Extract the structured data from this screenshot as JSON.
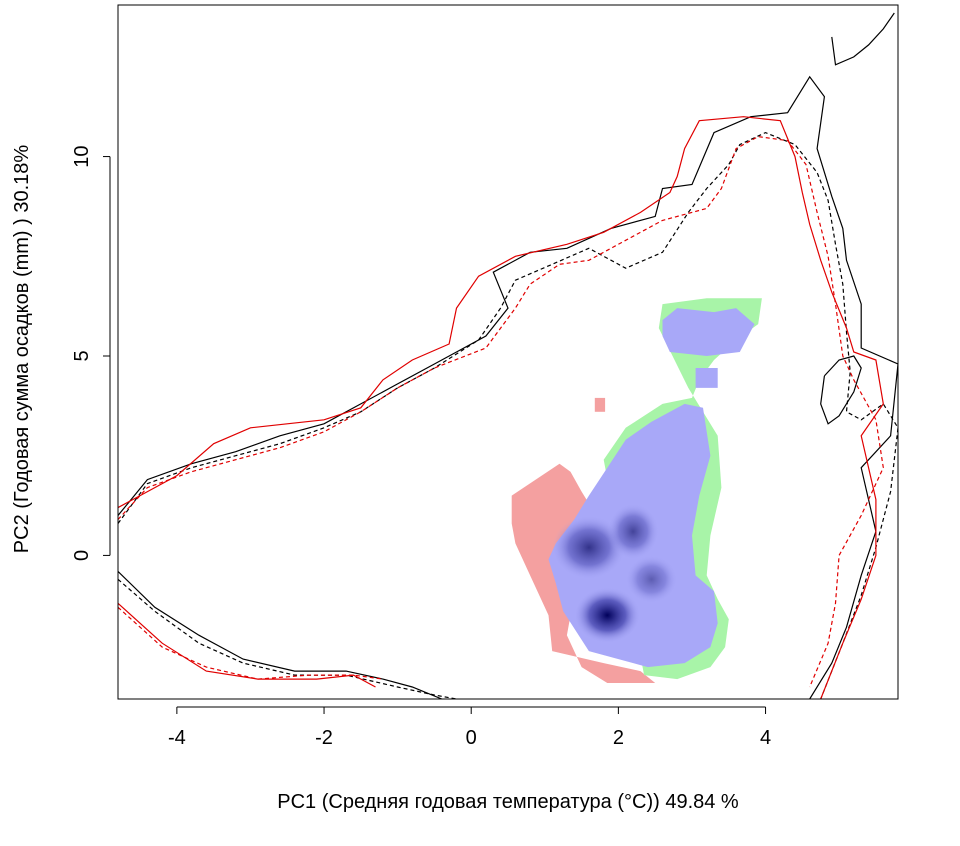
{
  "chart_data": {
    "type": "heatmap",
    "title": "",
    "xlabel": "PC1 (Средняя годовая температура (°С)) 49.84 %",
    "ylabel": "PC2 (Годовая сумма осадков  (mm) ) 30.18%",
    "xlim": [
      -4.8,
      5.8
    ],
    "ylim": [
      -3.6,
      13.8
    ],
    "xticks": [
      -4,
      -2,
      0,
      2,
      4
    ],
    "xtick_labels": [
      "-4",
      "-2",
      "0",
      "2",
      "4"
    ],
    "yticks": [
      0,
      5,
      10
    ],
    "ytick_labels": [
      "0",
      "5",
      "10"
    ],
    "grid": false,
    "legend": "none",
    "colors": {
      "only_species_1": "#f4a0a0",
      "only_species_2": "#a8f4a8",
      "overlap_low": "#a8a8f8",
      "overlap_high": "#00005a",
      "environment_contour_1": "#000000",
      "environment_contour_2": "#e00000"
    },
    "regions": [
      {
        "name": "red-zone",
        "fill": "#f4a0a0",
        "points": [
          [
            0.55,
            1.5
          ],
          [
            1.2,
            2.3
          ],
          [
            1.35,
            2.1
          ],
          [
            1.5,
            1.6
          ],
          [
            1.7,
            1.0
          ],
          [
            1.75,
            0.5
          ],
          [
            1.7,
            0.0
          ],
          [
            1.4,
            -1.0
          ],
          [
            1.3,
            -2.0
          ],
          [
            1.5,
            -2.8
          ],
          [
            1.85,
            -3.2
          ],
          [
            2.5,
            -3.2
          ],
          [
            2.3,
            -2.9
          ],
          [
            1.8,
            -2.7
          ],
          [
            1.1,
            -2.4
          ],
          [
            1.05,
            -1.5
          ],
          [
            0.8,
            -0.5
          ],
          [
            0.6,
            0.3
          ],
          [
            0.55,
            0.8
          ]
        ]
      },
      {
        "name": "red-blob-small",
        "fill": "#f4a0a0",
        "points": [
          [
            1.68,
            3.95
          ],
          [
            1.82,
            3.95
          ],
          [
            1.82,
            3.6
          ],
          [
            1.68,
            3.6
          ]
        ]
      },
      {
        "name": "green-zone",
        "fill": "#a8f4a8",
        "points": [
          [
            1.8,
            2.4
          ],
          [
            2.1,
            3.2
          ],
          [
            2.6,
            3.8
          ],
          [
            3.0,
            3.95
          ],
          [
            3.1,
            4.4
          ],
          [
            3.3,
            4.9
          ],
          [
            3.6,
            5.4
          ],
          [
            3.9,
            5.8
          ],
          [
            3.95,
            6.45
          ],
          [
            3.2,
            6.45
          ],
          [
            2.6,
            6.3
          ],
          [
            2.55,
            5.7
          ],
          [
            2.95,
            4.2
          ],
          [
            3.35,
            3.0
          ],
          [
            3.4,
            1.7
          ],
          [
            3.25,
            0.5
          ],
          [
            3.2,
            -0.5
          ],
          [
            3.35,
            -1.1
          ],
          [
            3.5,
            -1.6
          ],
          [
            3.45,
            -2.3
          ],
          [
            3.25,
            -2.8
          ],
          [
            2.8,
            -3.1
          ],
          [
            2.35,
            -3.0
          ]
        ]
      },
      {
        "name": "blue-zone",
        "fill": "#a8a8f8",
        "points": [
          [
            1.85,
            2.2
          ],
          [
            2.1,
            2.9
          ],
          [
            2.45,
            3.35
          ],
          [
            2.9,
            3.8
          ],
          [
            3.15,
            3.7
          ],
          [
            3.25,
            2.5
          ],
          [
            3.1,
            1.5
          ],
          [
            3.0,
            0.5
          ],
          [
            3.05,
            -0.5
          ],
          [
            3.3,
            -0.9
          ],
          [
            3.35,
            -1.7
          ],
          [
            3.25,
            -2.3
          ],
          [
            2.9,
            -2.7
          ],
          [
            2.4,
            -2.8
          ],
          [
            1.6,
            -2.4
          ],
          [
            1.25,
            -1.4
          ],
          [
            1.15,
            -0.7
          ],
          [
            1.05,
            -0.1
          ],
          [
            1.15,
            0.3
          ],
          [
            1.4,
            0.9
          ],
          [
            1.6,
            1.5
          ]
        ]
      },
      {
        "name": "blue-zone-upper",
        "fill": "#a8a8f8",
        "points": [
          [
            2.6,
            5.9
          ],
          [
            2.8,
            6.2
          ],
          [
            3.3,
            6.1
          ],
          [
            3.6,
            6.2
          ],
          [
            3.85,
            5.8
          ],
          [
            3.65,
            5.1
          ],
          [
            3.2,
            5.0
          ],
          [
            2.7,
            5.1
          ],
          [
            2.6,
            5.5
          ]
        ]
      },
      {
        "name": "blue-zone-link",
        "fill": "#a8a8f8",
        "points": [
          [
            3.05,
            4.2
          ],
          [
            3.35,
            4.2
          ],
          [
            3.35,
            4.7
          ],
          [
            3.05,
            4.7
          ]
        ]
      }
    ],
    "density_cores": [
      {
        "x": 1.85,
        "y": -1.5,
        "rx": 0.45,
        "ry": 0.7,
        "intensity": 1.0
      },
      {
        "x": 1.6,
        "y": 0.2,
        "rx": 0.5,
        "ry": 0.8,
        "intensity": 0.7
      },
      {
        "x": 2.2,
        "y": 0.6,
        "rx": 0.35,
        "ry": 0.7,
        "intensity": 0.6
      },
      {
        "x": 2.45,
        "y": -0.6,
        "rx": 0.35,
        "ry": 0.6,
        "intensity": 0.45
      }
    ],
    "contours": [
      {
        "name": "contour-black-solid",
        "color": "#000000",
        "dash": false,
        "points": [
          [
            -4.8,
            1.0
          ],
          [
            -4.4,
            1.9
          ],
          [
            -3.8,
            2.3
          ],
          [
            -3.2,
            2.6
          ],
          [
            -2.6,
            3.0
          ],
          [
            -2.0,
            3.3
          ],
          [
            -1.5,
            3.8
          ],
          [
            -1.0,
            4.3
          ],
          [
            -0.5,
            4.8
          ],
          [
            -0.2,
            5.1
          ],
          [
            0.2,
            5.5
          ],
          [
            0.5,
            6.2
          ],
          [
            0.3,
            7.1
          ],
          [
            0.8,
            7.6
          ],
          [
            1.3,
            7.7
          ],
          [
            1.9,
            8.2
          ],
          [
            2.5,
            8.5
          ],
          [
            2.6,
            9.2
          ],
          [
            3.0,
            9.3
          ],
          [
            3.3,
            10.6
          ],
          [
            3.8,
            11.0
          ],
          [
            4.3,
            11.1
          ],
          [
            4.6,
            12.0
          ],
          [
            4.8,
            11.5
          ],
          [
            4.7,
            10.2
          ],
          [
            4.9,
            9.0
          ],
          [
            5.05,
            8.2
          ],
          [
            5.1,
            7.4
          ],
          [
            5.3,
            6.3
          ],
          [
            5.3,
            5.2
          ],
          [
            5.8,
            4.8
          ],
          [
            5.7,
            3.0
          ],
          [
            5.3,
            2.2
          ],
          [
            5.5,
            0.6
          ],
          [
            5.3,
            -0.5
          ],
          [
            5.1,
            -1.8
          ],
          [
            4.9,
            -2.7
          ],
          [
            4.6,
            -3.6
          ]
        ]
      },
      {
        "name": "contour-black-solid-lower",
        "color": "#000000",
        "dash": false,
        "points": [
          [
            -4.8,
            -0.4
          ],
          [
            -4.3,
            -1.3
          ],
          [
            -3.7,
            -2.0
          ],
          [
            -3.1,
            -2.6
          ],
          [
            -2.4,
            -2.9
          ],
          [
            -1.7,
            -2.9
          ],
          [
            -1.2,
            -3.1
          ],
          [
            -0.8,
            -3.3
          ],
          [
            -0.4,
            -3.6
          ]
        ]
      },
      {
        "name": "contour-black-dashed",
        "color": "#000000",
        "dash": true,
        "points": [
          [
            -4.8,
            0.8
          ],
          [
            -4.4,
            1.8
          ],
          [
            -3.8,
            2.2
          ],
          [
            -3.2,
            2.5
          ],
          [
            -2.6,
            2.8
          ],
          [
            -2.0,
            3.2
          ],
          [
            -1.5,
            3.6
          ],
          [
            -1.0,
            4.2
          ],
          [
            -0.5,
            4.7
          ],
          [
            0.1,
            5.4
          ],
          [
            0.4,
            6.2
          ],
          [
            0.6,
            6.9
          ],
          [
            1.1,
            7.3
          ],
          [
            1.6,
            7.7
          ],
          [
            2.1,
            7.2
          ],
          [
            2.6,
            7.6
          ],
          [
            2.95,
            8.6
          ],
          [
            3.2,
            9.2
          ],
          [
            3.5,
            9.8
          ],
          [
            3.65,
            10.3
          ],
          [
            4.0,
            10.6
          ],
          [
            4.4,
            10.3
          ],
          [
            4.7,
            9.6
          ],
          [
            4.85,
            8.9
          ],
          [
            4.95,
            7.8
          ],
          [
            5.05,
            6.8
          ],
          [
            5.1,
            5.6
          ],
          [
            5.15,
            4.6
          ],
          [
            5.1,
            3.6
          ],
          [
            5.3,
            3.4
          ],
          [
            5.6,
            3.8
          ],
          [
            5.8,
            3.2
          ],
          [
            5.7,
            1.6
          ],
          [
            5.5,
            0.2
          ],
          [
            5.3,
            -1.0
          ],
          [
            5.05,
            -2.2
          ],
          [
            4.75,
            -3.6
          ]
        ]
      },
      {
        "name": "contour-black-dashed-lower",
        "color": "#000000",
        "dash": true,
        "points": [
          [
            -4.8,
            -0.6
          ],
          [
            -4.3,
            -1.4
          ],
          [
            -3.7,
            -2.2
          ],
          [
            -3.1,
            -2.7
          ],
          [
            -2.4,
            -3.0
          ],
          [
            -1.7,
            -3.0
          ],
          [
            -1.0,
            -3.3
          ],
          [
            -0.5,
            -3.5
          ],
          [
            -0.2,
            -3.6
          ]
        ]
      },
      {
        "name": "contour-red-solid",
        "color": "#e00000",
        "dash": false,
        "points": [
          [
            -4.8,
            1.2
          ],
          [
            -4.5,
            1.5
          ],
          [
            -4.0,
            2.0
          ],
          [
            -3.5,
            2.8
          ],
          [
            -3.0,
            3.2
          ],
          [
            -2.5,
            3.3
          ],
          [
            -2.0,
            3.4
          ],
          [
            -1.5,
            3.7
          ],
          [
            -1.2,
            4.4
          ],
          [
            -0.8,
            4.9
          ],
          [
            -0.3,
            5.3
          ],
          [
            -0.2,
            6.2
          ],
          [
            0.1,
            7.0
          ],
          [
            0.6,
            7.5
          ],
          [
            1.3,
            7.8
          ],
          [
            1.8,
            8.1
          ],
          [
            2.3,
            8.6
          ],
          [
            2.7,
            9.1
          ],
          [
            2.8,
            9.5
          ],
          [
            2.9,
            10.2
          ],
          [
            3.1,
            10.9
          ],
          [
            3.7,
            11.0
          ],
          [
            4.2,
            10.9
          ],
          [
            4.4,
            10.0
          ],
          [
            4.5,
            9.1
          ],
          [
            4.6,
            8.3
          ],
          [
            4.75,
            7.4
          ],
          [
            4.9,
            6.6
          ],
          [
            5.1,
            5.7
          ],
          [
            5.2,
            5.1
          ],
          [
            5.5,
            4.9
          ],
          [
            5.6,
            3.8
          ],
          [
            5.3,
            3.0
          ],
          [
            5.5,
            1.4
          ],
          [
            5.5,
            0.0
          ],
          [
            5.3,
            -1.1
          ],
          [
            5.05,
            -2.2
          ],
          [
            4.75,
            -3.6
          ]
        ]
      },
      {
        "name": "contour-red-solid-lower",
        "color": "#e00000",
        "dash": false,
        "points": [
          [
            -4.8,
            -1.2
          ],
          [
            -4.2,
            -2.2
          ],
          [
            -3.6,
            -2.9
          ],
          [
            -2.9,
            -3.1
          ],
          [
            -2.1,
            -3.1
          ],
          [
            -1.6,
            -3.0
          ],
          [
            -1.3,
            -3.3
          ]
        ]
      },
      {
        "name": "contour-red-dashed",
        "color": "#e00000",
        "dash": true,
        "points": [
          [
            -4.8,
            0.9
          ],
          [
            -4.4,
            1.7
          ],
          [
            -3.8,
            2.1
          ],
          [
            -3.2,
            2.4
          ],
          [
            -2.6,
            2.7
          ],
          [
            -2.0,
            3.1
          ],
          [
            -1.5,
            3.6
          ],
          [
            -1.0,
            4.2
          ],
          [
            -0.5,
            4.7
          ],
          [
            0.2,
            5.2
          ],
          [
            0.6,
            6.2
          ],
          [
            0.8,
            6.8
          ],
          [
            1.2,
            7.3
          ],
          [
            1.6,
            7.4
          ],
          [
            2.1,
            7.9
          ],
          [
            2.6,
            8.4
          ],
          [
            3.2,
            8.7
          ],
          [
            3.4,
            9.2
          ],
          [
            3.6,
            10.2
          ],
          [
            3.9,
            10.5
          ],
          [
            4.3,
            10.4
          ],
          [
            4.55,
            9.8
          ],
          [
            4.7,
            8.6
          ],
          [
            4.85,
            7.5
          ],
          [
            4.95,
            6.3
          ],
          [
            5.05,
            5.0
          ],
          [
            5.2,
            4.4
          ],
          [
            5.5,
            3.4
          ],
          [
            5.6,
            2.2
          ],
          [
            5.3,
            1.0
          ],
          [
            5.0,
            0.0
          ],
          [
            4.95,
            -1.2
          ],
          [
            4.85,
            -2.2
          ],
          [
            4.6,
            -3.3
          ]
        ]
      },
      {
        "name": "contour-red-dashed-lower",
        "color": "#e00000",
        "dash": true,
        "points": [
          [
            -4.8,
            -1.3
          ],
          [
            -4.2,
            -2.3
          ],
          [
            -3.6,
            -2.8
          ],
          [
            -2.9,
            -3.1
          ],
          [
            -2.2,
            -3.0
          ],
          [
            -1.6,
            -3.0
          ],
          [
            -1.2,
            -3.1
          ]
        ]
      },
      {
        "name": "contour-black-solid-fragment",
        "color": "#000000",
        "dash": false,
        "points": [
          [
            4.9,
            13.0
          ],
          [
            4.95,
            12.3
          ],
          [
            5.2,
            12.5
          ],
          [
            5.4,
            12.8
          ],
          [
            5.6,
            13.2
          ],
          [
            5.75,
            13.6
          ]
        ]
      },
      {
        "name": "contour-black-solid-loop",
        "color": "#000000",
        "dash": false,
        "points": [
          [
            4.8,
            4.5
          ],
          [
            5.0,
            4.9
          ],
          [
            5.2,
            5.0
          ],
          [
            5.3,
            4.7
          ],
          [
            5.2,
            4.1
          ],
          [
            5.0,
            3.5
          ],
          [
            4.85,
            3.3
          ],
          [
            4.75,
            3.8
          ],
          [
            4.8,
            4.5
          ]
        ]
      }
    ]
  }
}
